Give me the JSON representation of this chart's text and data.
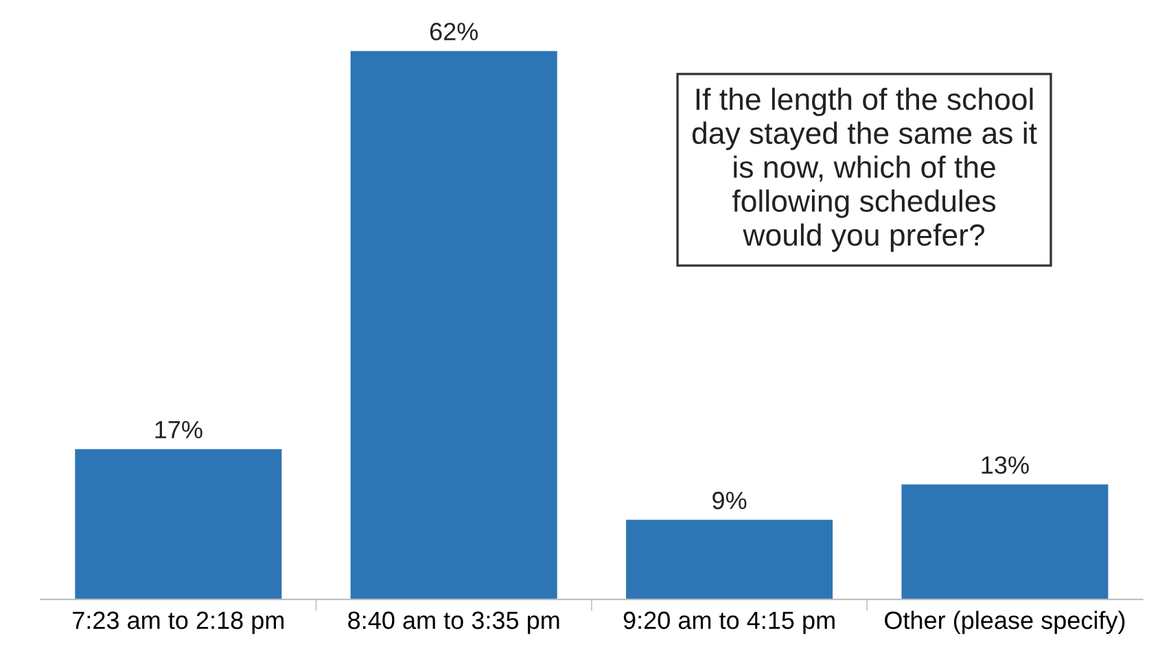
{
  "chart_data": {
    "type": "bar",
    "annotations": [
      "If the length of the school\nday stayed the same as it\nis now, which of the\nfollowing schedules\nwould you prefer?"
    ],
    "categories": [
      "7:23 am to 2:18 pm",
      "8:40 am to 3:35 pm",
      "9:20 am to 4:15 pm",
      "Other (please specify)"
    ],
    "values": [
      17,
      62,
      9,
      13
    ],
    "value_labels": [
      "17%",
      "62%",
      "9%",
      "13%"
    ],
    "color": "#2e75b6",
    "grid": false,
    "legend": false
  }
}
